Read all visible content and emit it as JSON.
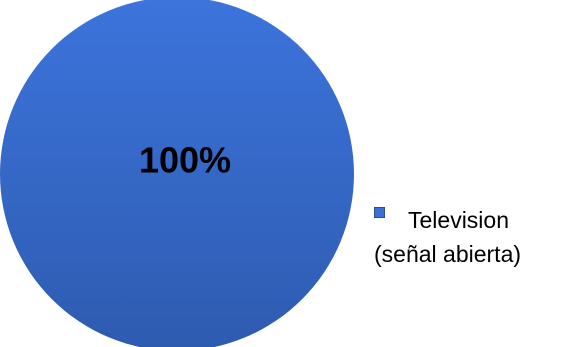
{
  "chart_data": {
    "type": "pie",
    "categories": [
      "Television (señal abierta)"
    ],
    "values": [
      100
    ],
    "data_labels": [
      "100%"
    ],
    "legend_position": "right",
    "colors": [
      "#3a6fd5"
    ],
    "title": ""
  }
}
